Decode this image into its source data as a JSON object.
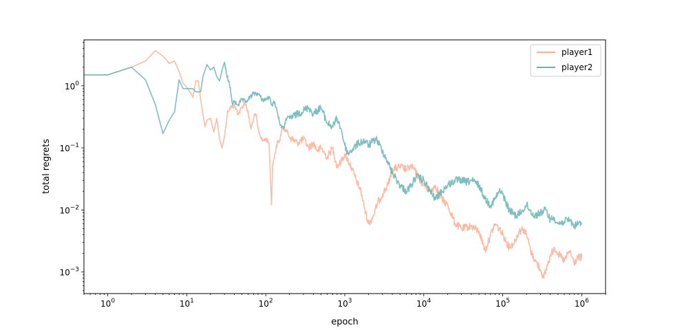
{
  "chart_data": {
    "type": "line",
    "xscale": "log",
    "yscale": "log",
    "xlabel": "epoch",
    "ylabel": "total regrets",
    "xlim": [
      0.5,
      2000000
    ],
    "ylim": [
      0.00045,
      5.5
    ],
    "xticks": [
      {
        "value": 1,
        "base": "10",
        "exp": "0"
      },
      {
        "value": 10,
        "base": "10",
        "exp": "1"
      },
      {
        "value": 100,
        "base": "10",
        "exp": "2"
      },
      {
        "value": 1000,
        "base": "10",
        "exp": "3"
      },
      {
        "value": 10000,
        "base": "10",
        "exp": "4"
      },
      {
        "value": 100000,
        "base": "10",
        "exp": "5"
      },
      {
        "value": 1000000,
        "base": "10",
        "exp": "6"
      }
    ],
    "yticks": [
      {
        "value": 1,
        "base": "10",
        "exp": "0"
      },
      {
        "value": 0.1,
        "base": "10",
        "exp": "−1"
      },
      {
        "value": 0.01,
        "base": "10",
        "exp": "−2"
      },
      {
        "value": 0.001,
        "base": "10",
        "exp": "−3"
      }
    ],
    "legend": {
      "placement": "top-right"
    },
    "series": [
      {
        "name": "player1",
        "color": "#fcaf94",
        "points": [
          [
            0.5,
            1.5
          ],
          [
            1,
            1.5
          ],
          [
            2,
            2.0
          ],
          [
            3,
            2.5
          ],
          [
            4,
            3.7
          ],
          [
            5,
            3.0
          ],
          [
            6,
            2.3
          ],
          [
            7,
            2.5
          ],
          [
            8,
            1.7
          ],
          [
            9,
            1.1
          ],
          [
            10,
            0.95
          ],
          [
            11,
            0.8
          ],
          [
            12,
            0.65
          ],
          [
            13,
            1.2
          ],
          [
            14,
            1.2
          ],
          [
            15,
            0.6
          ],
          [
            16,
            0.35
          ],
          [
            17,
            0.22
          ],
          [
            18,
            0.28
          ],
          [
            20,
            0.3
          ],
          [
            22,
            0.18
          ],
          [
            24,
            0.3
          ],
          [
            26,
            0.14
          ],
          [
            28,
            0.1
          ],
          [
            30,
            0.15
          ],
          [
            33,
            0.4
          ],
          [
            36,
            0.45
          ],
          [
            40,
            0.48
          ],
          [
            45,
            0.35
          ],
          [
            50,
            0.45
          ],
          [
            55,
            0.55
          ],
          [
            60,
            0.35
          ],
          [
            65,
            0.2
          ],
          [
            70,
            0.3
          ],
          [
            75,
            0.35
          ],
          [
            80,
            0.2
          ],
          [
            90,
            0.13
          ],
          [
            100,
            0.14
          ],
          [
            110,
            0.12
          ],
          [
            115,
            0.03
          ],
          [
            118,
            0.012
          ],
          [
            122,
            0.05
          ],
          [
            130,
            0.08
          ],
          [
            140,
            0.12
          ],
          [
            150,
            0.13
          ],
          [
            160,
            0.2
          ],
          [
            180,
            0.2
          ],
          [
            200,
            0.15
          ],
          [
            250,
            0.12
          ],
          [
            300,
            0.14
          ],
          [
            350,
            0.1
          ],
          [
            400,
            0.12
          ],
          [
            450,
            0.09
          ],
          [
            500,
            0.1
          ],
          [
            600,
            0.07
          ],
          [
            700,
            0.1
          ],
          [
            800,
            0.05
          ],
          [
            900,
            0.06
          ],
          [
            1000,
            0.08
          ],
          [
            1200,
            0.05
          ],
          [
            1400,
            0.03
          ],
          [
            1600,
            0.02
          ],
          [
            1800,
            0.01
          ],
          [
            2000,
            0.006
          ],
          [
            2300,
            0.008
          ],
          [
            2600,
            0.013
          ],
          [
            3000,
            0.018
          ],
          [
            3500,
            0.025
          ],
          [
            4000,
            0.045
          ],
          [
            5000,
            0.05
          ],
          [
            6000,
            0.045
          ],
          [
            7000,
            0.05
          ],
          [
            8000,
            0.04
          ],
          [
            9000,
            0.03
          ],
          [
            10000,
            0.025
          ],
          [
            12000,
            0.02
          ],
          [
            14000,
            0.025
          ],
          [
            17000,
            0.015
          ],
          [
            20000,
            0.012
          ],
          [
            25000,
            0.006
          ],
          [
            30000,
            0.005
          ],
          [
            40000,
            0.0055
          ],
          [
            50000,
            0.0045
          ],
          [
            60000,
            0.0022
          ],
          [
            70000,
            0.004
          ],
          [
            80000,
            0.006
          ],
          [
            90000,
            0.005
          ],
          [
            100000,
            0.004
          ],
          [
            120000,
            0.0025
          ],
          [
            140000,
            0.003
          ],
          [
            160000,
            0.0045
          ],
          [
            180000,
            0.005
          ],
          [
            200000,
            0.004
          ],
          [
            230000,
            0.002
          ],
          [
            260000,
            0.0015
          ],
          [
            300000,
            0.0011
          ],
          [
            330000,
            0.0008
          ],
          [
            360000,
            0.0012
          ],
          [
            400000,
            0.0018
          ],
          [
            450000,
            0.0025
          ],
          [
            500000,
            0.002
          ],
          [
            600000,
            0.0015
          ],
          [
            700000,
            0.0022
          ],
          [
            800000,
            0.0014
          ],
          [
            900000,
            0.0017
          ],
          [
            1000000,
            0.0017
          ]
        ]
      },
      {
        "name": "player2",
        "color": "#68b3b3",
        "points": [
          [
            0.5,
            1.5
          ],
          [
            1,
            1.5
          ],
          [
            2,
            2.0
          ],
          [
            3,
            1.25
          ],
          [
            4,
            0.5
          ],
          [
            5,
            0.17
          ],
          [
            6,
            0.28
          ],
          [
            7,
            0.38
          ],
          [
            8,
            1.25
          ],
          [
            9,
            0.9
          ],
          [
            10,
            0.9
          ],
          [
            12,
            0.9
          ],
          [
            13,
            0.8
          ],
          [
            15,
            0.8
          ],
          [
            16,
            1.4
          ],
          [
            18,
            2.2
          ],
          [
            20,
            1.8
          ],
          [
            22,
            2.0
          ],
          [
            24,
            1.4
          ],
          [
            26,
            1.2
          ],
          [
            28,
            1.8
          ],
          [
            30,
            2.4
          ],
          [
            32,
            1.5
          ],
          [
            34,
            1.2
          ],
          [
            36,
            0.8
          ],
          [
            38,
            0.5
          ],
          [
            40,
            0.55
          ],
          [
            45,
            0.5
          ],
          [
            50,
            0.6
          ],
          [
            55,
            0.55
          ],
          [
            60,
            0.6
          ],
          [
            70,
            0.75
          ],
          [
            80,
            0.75
          ],
          [
            90,
            0.6
          ],
          [
            100,
            0.6
          ],
          [
            110,
            0.65
          ],
          [
            120,
            0.5
          ],
          [
            130,
            0.55
          ],
          [
            140,
            0.38
          ],
          [
            150,
            0.25
          ],
          [
            160,
            0.22
          ],
          [
            170,
            0.2
          ],
          [
            180,
            0.3
          ],
          [
            200,
            0.3
          ],
          [
            250,
            0.35
          ],
          [
            300,
            0.4
          ],
          [
            350,
            0.45
          ],
          [
            400,
            0.35
          ],
          [
            450,
            0.4
          ],
          [
            500,
            0.45
          ],
          [
            600,
            0.25
          ],
          [
            700,
            0.22
          ],
          [
            800,
            0.3
          ],
          [
            900,
            0.2
          ],
          [
            1000,
            0.11
          ],
          [
            1100,
            0.08
          ],
          [
            1200,
            0.09
          ],
          [
            1500,
            0.12
          ],
          [
            1800,
            0.13
          ],
          [
            2000,
            0.11
          ],
          [
            2500,
            0.14
          ],
          [
            3000,
            0.09
          ],
          [
            3500,
            0.06
          ],
          [
            4000,
            0.04
          ],
          [
            5000,
            0.025
          ],
          [
            6000,
            0.02
          ],
          [
            7000,
            0.025
          ],
          [
            8000,
            0.035
          ],
          [
            10000,
            0.03
          ],
          [
            12000,
            0.02
          ],
          [
            14000,
            0.015
          ],
          [
            17000,
            0.02
          ],
          [
            20000,
            0.025
          ],
          [
            25000,
            0.03
          ],
          [
            30000,
            0.03
          ],
          [
            35000,
            0.028
          ],
          [
            40000,
            0.03
          ],
          [
            50000,
            0.025
          ],
          [
            60000,
            0.015
          ],
          [
            70000,
            0.012
          ],
          [
            80000,
            0.015
          ],
          [
            90000,
            0.02
          ],
          [
            100000,
            0.018
          ],
          [
            120000,
            0.01
          ],
          [
            150000,
            0.008
          ],
          [
            180000,
            0.01
          ],
          [
            200000,
            0.012
          ],
          [
            250000,
            0.008
          ],
          [
            300000,
            0.009
          ],
          [
            350000,
            0.01
          ],
          [
            400000,
            0.007
          ],
          [
            450000,
            0.0075
          ],
          [
            500000,
            0.006
          ],
          [
            600000,
            0.0065
          ],
          [
            700000,
            0.007
          ],
          [
            800000,
            0.0055
          ],
          [
            900000,
            0.006
          ],
          [
            1000000,
            0.006
          ]
        ]
      }
    ]
  }
}
